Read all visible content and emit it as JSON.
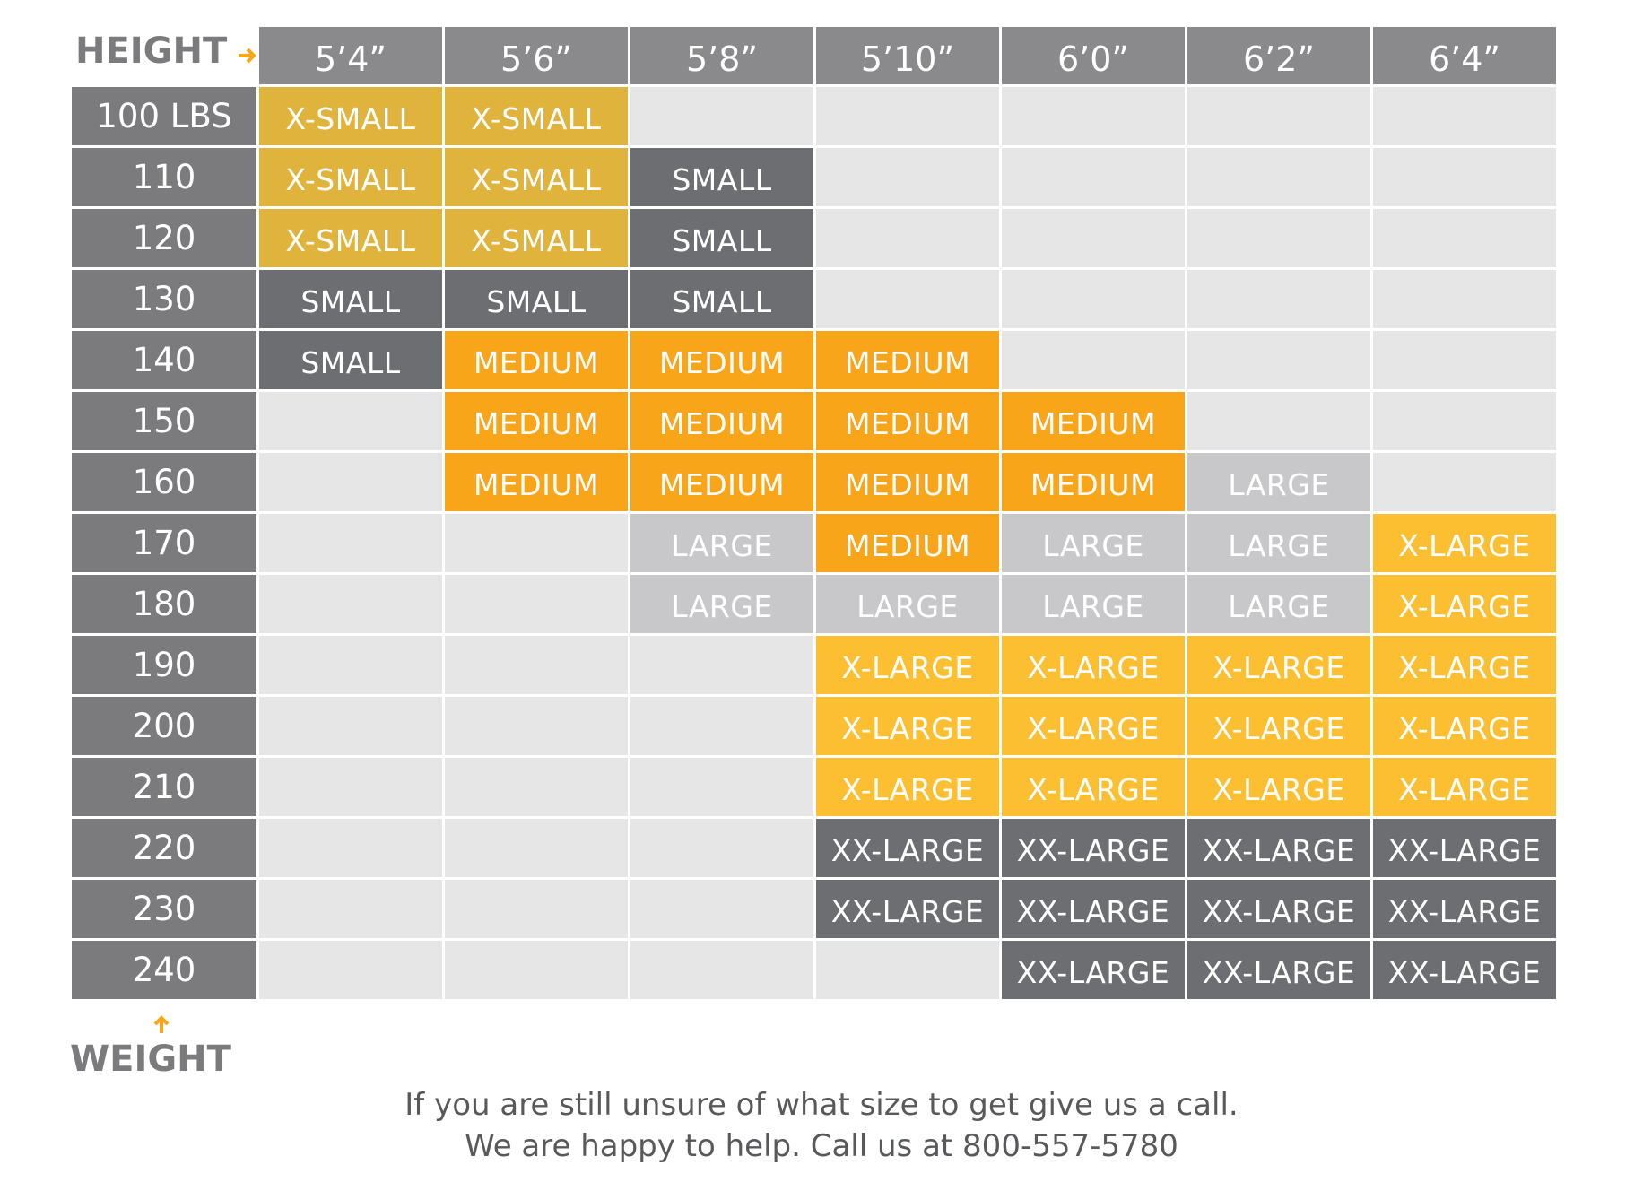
{
  "table": {
    "height_label": "HEIGHT",
    "weight_label": "WEIGHT",
    "columns": [
      "5’4”",
      "5’6”",
      "5’8”",
      "5’10”",
      "6’0”",
      "6’2”",
      "6’4”"
    ],
    "rows": [
      {
        "label": "100 LBS",
        "cells": [
          {
            "text": "X-SMALL",
            "color": "#e0b43c"
          },
          {
            "text": "X-SMALL",
            "color": "#e0b43c"
          },
          null,
          null,
          null,
          null,
          null
        ]
      },
      {
        "label": "110",
        "cells": [
          {
            "text": "X-SMALL",
            "color": "#e0b43c"
          },
          {
            "text": "X-SMALL",
            "color": "#e0b43c"
          },
          {
            "text": "SMALL",
            "color": "#6d6e71"
          },
          null,
          null,
          null,
          null
        ]
      },
      {
        "label": "120",
        "cells": [
          {
            "text": "X-SMALL",
            "color": "#e0b43c"
          },
          {
            "text": "X-SMALL",
            "color": "#e0b43c"
          },
          {
            "text": "SMALL",
            "color": "#6d6e71"
          },
          null,
          null,
          null,
          null
        ]
      },
      {
        "label": "130",
        "cells": [
          {
            "text": "SMALL",
            "color": "#6d6e71"
          },
          {
            "text": "SMALL",
            "color": "#6d6e71"
          },
          {
            "text": "SMALL",
            "color": "#6d6e71"
          },
          null,
          null,
          null,
          null
        ]
      },
      {
        "label": "140",
        "cells": [
          {
            "text": "SMALL",
            "color": "#6d6e71"
          },
          {
            "text": "MEDIUM",
            "color": "#f9a51a"
          },
          {
            "text": "MEDIUM",
            "color": "#f9a51a"
          },
          {
            "text": "MEDIUM",
            "color": "#f9a51a"
          },
          null,
          null,
          null
        ]
      },
      {
        "label": "150",
        "cells": [
          null,
          {
            "text": "MEDIUM",
            "color": "#f9a51a"
          },
          {
            "text": "MEDIUM",
            "color": "#f9a51a"
          },
          {
            "text": "MEDIUM",
            "color": "#f9a51a"
          },
          {
            "text": "MEDIUM",
            "color": "#f9a51a"
          },
          null,
          null
        ]
      },
      {
        "label": "160",
        "cells": [
          null,
          {
            "text": "MEDIUM",
            "color": "#f9a51a"
          },
          {
            "text": "MEDIUM",
            "color": "#f9a51a"
          },
          {
            "text": "MEDIUM",
            "color": "#f9a51a"
          },
          {
            "text": "MEDIUM",
            "color": "#f9a51a"
          },
          {
            "text": "LARGE",
            "color": "#c8c8ca"
          },
          null
        ]
      },
      {
        "label": "170",
        "cells": [
          null,
          null,
          {
            "text": "LARGE",
            "color": "#c8c8ca"
          },
          {
            "text": "MEDIUM",
            "color": "#f9a51a"
          },
          {
            "text": "LARGE",
            "color": "#c8c8ca"
          },
          {
            "text": "LARGE",
            "color": "#c8c8ca"
          },
          {
            "text": "X-LARGE",
            "color": "#fcbf32"
          }
        ]
      },
      {
        "label": "180",
        "cells": [
          null,
          null,
          {
            "text": "LARGE",
            "color": "#c8c8ca"
          },
          {
            "text": "LARGE",
            "color": "#c8c8ca"
          },
          {
            "text": "LARGE",
            "color": "#c8c8ca"
          },
          {
            "text": "LARGE",
            "color": "#c8c8ca"
          },
          {
            "text": "X-LARGE",
            "color": "#fcbf32"
          }
        ]
      },
      {
        "label": "190",
        "cells": [
          null,
          null,
          null,
          {
            "text": "X-LARGE",
            "color": "#fcbf32"
          },
          {
            "text": "X-LARGE",
            "color": "#fcbf32"
          },
          {
            "text": "X-LARGE",
            "color": "#fcbf32"
          },
          {
            "text": "X-LARGE",
            "color": "#fcbf32"
          }
        ]
      },
      {
        "label": "200",
        "cells": [
          null,
          null,
          null,
          {
            "text": "X-LARGE",
            "color": "#fcbf32"
          },
          {
            "text": "X-LARGE",
            "color": "#fcbf32"
          },
          {
            "text": "X-LARGE",
            "color": "#fcbf32"
          },
          {
            "text": "X-LARGE",
            "color": "#fcbf32"
          }
        ]
      },
      {
        "label": "210",
        "cells": [
          null,
          null,
          null,
          {
            "text": "X-LARGE",
            "color": "#fcbf32"
          },
          {
            "text": "X-LARGE",
            "color": "#fcbf32"
          },
          {
            "text": "X-LARGE",
            "color": "#fcbf32"
          },
          {
            "text": "X-LARGE",
            "color": "#fcbf32"
          }
        ]
      },
      {
        "label": "220",
        "cells": [
          null,
          null,
          null,
          {
            "text": "XX-LARGE",
            "color": "#6d6e71"
          },
          {
            "text": "XX-LARGE",
            "color": "#6d6e71"
          },
          {
            "text": "XX-LARGE",
            "color": "#6d6e71"
          },
          {
            "text": "XX-LARGE",
            "color": "#6d6e71"
          }
        ]
      },
      {
        "label": "230",
        "cells": [
          null,
          null,
          null,
          {
            "text": "XX-LARGE",
            "color": "#6d6e71"
          },
          {
            "text": "XX-LARGE",
            "color": "#6d6e71"
          },
          {
            "text": "XX-LARGE",
            "color": "#6d6e71"
          },
          {
            "text": "XX-LARGE",
            "color": "#6d6e71"
          }
        ]
      },
      {
        "label": "240",
        "cells": [
          null,
          null,
          null,
          null,
          {
            "text": "XX-LARGE",
            "color": "#6d6e71"
          },
          {
            "text": "XX-LARGE",
            "color": "#6d6e71"
          },
          {
            "text": "XX-LARGE",
            "color": "#6d6e71"
          }
        ]
      }
    ]
  },
  "footer": [
    "If you are still unsure of what size to get give us a call.",
    "We are happy to help.  Call us at 800-557-5780"
  ]
}
